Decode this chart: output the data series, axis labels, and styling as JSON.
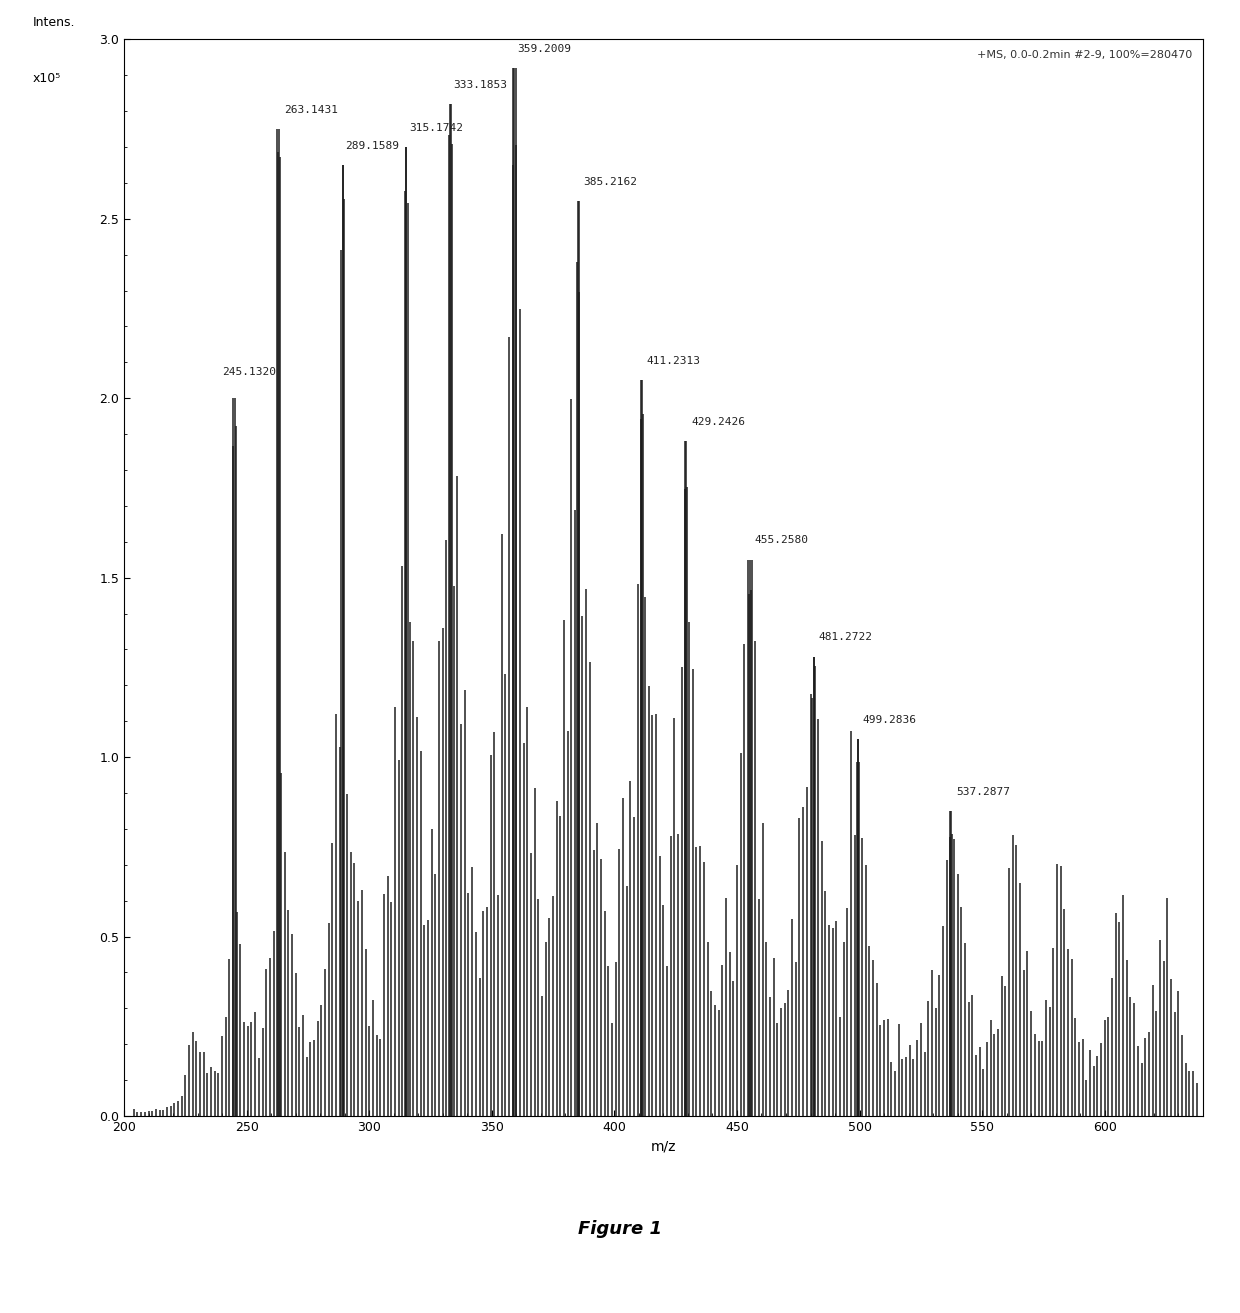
{
  "title_annotation": "+MS, 0.0-0.2min #2-9, 100%=280470",
  "ylabel": "Intens.",
  "ylabel2": "x10⁵",
  "xlabel": "m/z",
  "figure_label": "Figure 1",
  "ylim": [
    0.0,
    3.0
  ],
  "xlim": [
    200,
    640
  ],
  "yticks": [
    0.0,
    0.5,
    1.0,
    1.5,
    2.0,
    2.5,
    3.0
  ],
  "xticks": [
    200,
    250,
    300,
    350,
    400,
    450,
    500,
    550,
    600
  ],
  "background_color": "#ffffff",
  "bar_color": "#1a1a1a",
  "labeled_peaks": [
    {
      "mz": 245.132,
      "intensity": 2.0,
      "label": "245.1320"
    },
    {
      "mz": 263.1431,
      "intensity": 2.75,
      "label": "263.1431"
    },
    {
      "mz": 289.1589,
      "intensity": 2.65,
      "label": "289.1589"
    },
    {
      "mz": 315.1742,
      "intensity": 2.7,
      "label": "315.1742"
    },
    {
      "mz": 333.1853,
      "intensity": 2.82,
      "label": "333.1853"
    },
    {
      "mz": 359.2009,
      "intensity": 2.92,
      "label": "359.2009"
    },
    {
      "mz": 385.2162,
      "intensity": 2.55,
      "label": "385.2162"
    },
    {
      "mz": 411.2313,
      "intensity": 2.05,
      "label": "411.2313"
    },
    {
      "mz": 429.2426,
      "intensity": 1.88,
      "label": "429.2426"
    },
    {
      "mz": 455.258,
      "intensity": 1.55,
      "label": "455.2580"
    },
    {
      "mz": 481.2722,
      "intensity": 1.28,
      "label": "481.2722"
    },
    {
      "mz": 499.2836,
      "intensity": 1.05,
      "label": "499.2836"
    },
    {
      "mz": 537.2877,
      "intensity": 0.85,
      "label": "537.2877"
    }
  ]
}
